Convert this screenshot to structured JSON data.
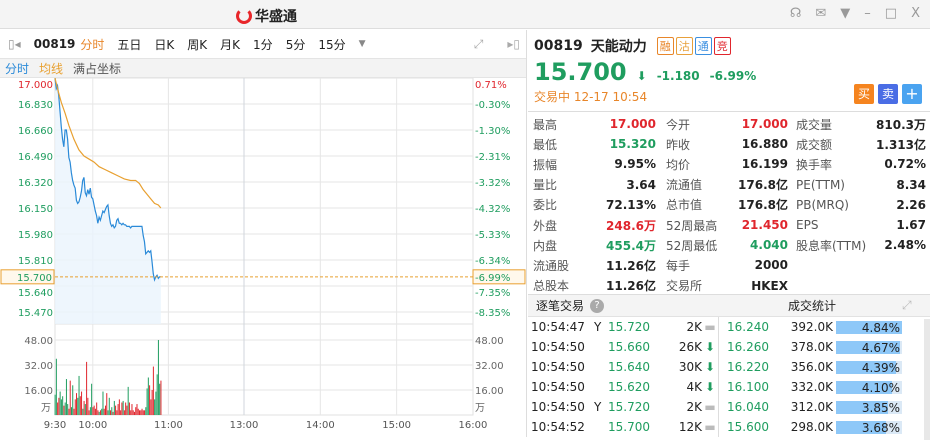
{
  "app": {
    "title": "华盛通",
    "window_icons": [
      "headset-icon",
      "mail-icon",
      "shirt-icon",
      "minimize-icon",
      "maximize-icon",
      "close-icon"
    ]
  },
  "toolbar": {
    "code": "00819",
    "tabs": [
      "分时",
      "五日",
      "日K",
      "周K",
      "月K",
      "1分",
      "5分",
      "15分"
    ],
    "active_tab": "分时"
  },
  "subbar": {
    "items": [
      "分时",
      "均线",
      "满占坐标"
    ]
  },
  "chart_data": {
    "type": "line",
    "price_ticks": [
      "17.000",
      "16.830",
      "16.660",
      "16.490",
      "16.320",
      "16.150",
      "15.980",
      "15.810",
      "15.640",
      "15.470"
    ],
    "pct_ticks": [
      "0.71%",
      "-0.30%",
      "-1.30%",
      "-2.31%",
      "-3.32%",
      "-4.32%",
      "-5.33%",
      "-6.34%",
      "-7.35%",
      "-8.35%"
    ],
    "current_price_label": "15.700",
    "current_pct_label": "-6.99%",
    "volume_ticks": [
      "48.00",
      "32.00",
      "16.00"
    ],
    "volume_unit": "万",
    "time_labels": [
      "9:30",
      "10:00",
      "11:00",
      "13:00",
      "14:00",
      "15:00",
      "16:00"
    ],
    "ylim": [
      15.47,
      17.17
    ],
    "volume_ylim": [
      0,
      56
    ],
    "price_series": [
      [
        0,
        17.0
      ],
      [
        1,
        16.93
      ],
      [
        2,
        16.95
      ],
      [
        3,
        16.88
      ],
      [
        4,
        16.78
      ],
      [
        5,
        16.68
      ],
      [
        6,
        16.6
      ],
      [
        7,
        16.55
      ],
      [
        8,
        16.66
      ],
      [
        9,
        16.66
      ],
      [
        10,
        16.6
      ],
      [
        11,
        16.48
      ],
      [
        12,
        16.45
      ],
      [
        13,
        16.38
      ],
      [
        14,
        16.33
      ],
      [
        15,
        16.3
      ],
      [
        16,
        16.28
      ],
      [
        17,
        16.2
      ],
      [
        18,
        16.18
      ],
      [
        19,
        16.19
      ],
      [
        20,
        16.22
      ],
      [
        21,
        16.26
      ],
      [
        22,
        16.33
      ],
      [
        23,
        16.35
      ],
      [
        24,
        16.25
      ],
      [
        25,
        16.23
      ],
      [
        26,
        16.27
      ],
      [
        27,
        16.24
      ],
      [
        28,
        16.28
      ],
      [
        29,
        16.22
      ],
      [
        30,
        16.21
      ],
      [
        31,
        16.17
      ],
      [
        32,
        16.13
      ],
      [
        33,
        16.1
      ],
      [
        34,
        16.05
      ],
      [
        35,
        16.09
      ],
      [
        36,
        16.07
      ],
      [
        37,
        16.1
      ],
      [
        38,
        16.13
      ],
      [
        39,
        16.12
      ],
      [
        40,
        16.14
      ],
      [
        41,
        16.16
      ],
      [
        42,
        16.17
      ],
      [
        43,
        16.1
      ],
      [
        44,
        16.05
      ],
      [
        45,
        16.03
      ],
      [
        46,
        16.04
      ],
      [
        47,
        16.02
      ],
      [
        48,
        16.03
      ],
      [
        49,
        16.07
      ],
      [
        50,
        16.08
      ],
      [
        51,
        16.05
      ],
      [
        52,
        16.05
      ],
      [
        53,
        16.04
      ],
      [
        54,
        16.05
      ],
      [
        55,
        16.04
      ],
      [
        56,
        16.04
      ],
      [
        57,
        16.03
      ],
      [
        58,
        16.03
      ],
      [
        59,
        16.03
      ],
      [
        60,
        16.02
      ],
      [
        61,
        16.03
      ],
      [
        62,
        16.03
      ],
      [
        63,
        16.03
      ],
      [
        64,
        16.03
      ],
      [
        65,
        16.03
      ],
      [
        66,
        16.03
      ],
      [
        67,
        16.03
      ],
      [
        68,
        16.03
      ],
      [
        69,
        16.03
      ],
      [
        70,
        15.97
      ],
      [
        71,
        15.93
      ],
      [
        72,
        15.85
      ],
      [
        73,
        15.86
      ],
      [
        74,
        15.87
      ],
      [
        75,
        15.86
      ],
      [
        76,
        15.87
      ],
      [
        77,
        15.8
      ],
      [
        78,
        15.72
      ],
      [
        79,
        15.68
      ],
      [
        80,
        15.7
      ],
      [
        81,
        15.71
      ],
      [
        82,
        15.69
      ],
      [
        83,
        15.7
      ],
      [
        84,
        15.7
      ]
    ],
    "avg_series": [
      [
        0,
        17.0
      ],
      [
        2,
        16.93
      ],
      [
        5,
        16.84
      ],
      [
        8,
        16.77
      ],
      [
        11,
        16.69
      ],
      [
        15,
        16.6
      ],
      [
        19,
        16.53
      ],
      [
        23,
        16.49
      ],
      [
        27,
        16.47
      ],
      [
        31,
        16.45
      ],
      [
        35,
        16.42
      ],
      [
        40,
        16.4
      ],
      [
        45,
        16.38
      ],
      [
        50,
        16.36
      ],
      [
        55,
        16.34
      ],
      [
        60,
        16.33
      ],
      [
        64,
        16.33
      ],
      [
        67,
        16.31
      ],
      [
        70,
        16.27
      ],
      [
        73,
        16.24
      ],
      [
        76,
        16.21
      ],
      [
        79,
        16.18
      ],
      [
        82,
        16.17
      ],
      [
        84,
        16.15
      ]
    ],
    "volume_series": [
      [
        0,
        13,
        "g"
      ],
      [
        1,
        36,
        "g"
      ],
      [
        2,
        8,
        "r"
      ],
      [
        3,
        11,
        "r"
      ],
      [
        4,
        15,
        "g"
      ],
      [
        5,
        10,
        "g"
      ],
      [
        6,
        12,
        "g"
      ],
      [
        7,
        6,
        "r"
      ],
      [
        8,
        8,
        "g"
      ],
      [
        9,
        23,
        "g"
      ],
      [
        10,
        7,
        "g"
      ],
      [
        11,
        4,
        "r"
      ],
      [
        12,
        22,
        "r"
      ],
      [
        13,
        5,
        "g"
      ],
      [
        14,
        19,
        "g"
      ],
      [
        15,
        4,
        "r"
      ],
      [
        16,
        10,
        "r"
      ],
      [
        17,
        14,
        "r"
      ],
      [
        18,
        11,
        "g"
      ],
      [
        19,
        25,
        "g"
      ],
      [
        20,
        12,
        "r"
      ],
      [
        21,
        15,
        "r"
      ],
      [
        22,
        4,
        "g"
      ],
      [
        23,
        9,
        "r"
      ],
      [
        24,
        7,
        "g"
      ],
      [
        25,
        34,
        "r"
      ],
      [
        26,
        11,
        "r"
      ],
      [
        27,
        3,
        "r"
      ],
      [
        28,
        5,
        "g"
      ],
      [
        29,
        20,
        "g"
      ],
      [
        30,
        5,
        "r"
      ],
      [
        31,
        6,
        "r"
      ],
      [
        32,
        4,
        "r"
      ],
      [
        33,
        8,
        "r"
      ],
      [
        34,
        3,
        "r"
      ],
      [
        35,
        2,
        "g"
      ],
      [
        36,
        3,
        "r"
      ],
      [
        37,
        4,
        "g"
      ],
      [
        38,
        15,
        "g"
      ],
      [
        39,
        4,
        "r"
      ],
      [
        40,
        6,
        "r"
      ],
      [
        41,
        14,
        "r"
      ],
      [
        42,
        3,
        "g"
      ],
      [
        43,
        11,
        "g"
      ],
      [
        44,
        3,
        "r"
      ],
      [
        45,
        5,
        "g"
      ],
      [
        46,
        2,
        "r"
      ],
      [
        47,
        9,
        "g"
      ],
      [
        48,
        6,
        "r"
      ],
      [
        49,
        3,
        "r"
      ],
      [
        50,
        7,
        "r"
      ],
      [
        51,
        10,
        "r"
      ],
      [
        52,
        3,
        "r"
      ],
      [
        53,
        8,
        "r"
      ],
      [
        54,
        9,
        "g"
      ],
      [
        55,
        3,
        "r"
      ],
      [
        56,
        8,
        "r"
      ],
      [
        57,
        6,
        "r"
      ],
      [
        58,
        18,
        "g"
      ],
      [
        59,
        8,
        "r"
      ],
      [
        60,
        3,
        "r"
      ],
      [
        61,
        7,
        "r"
      ],
      [
        62,
        3,
        "r"
      ],
      [
        63,
        2,
        "r"
      ],
      [
        64,
        5,
        "r"
      ],
      [
        65,
        7,
        "r"
      ],
      [
        66,
        4,
        "r"
      ],
      [
        67,
        3,
        "r"
      ],
      [
        68,
        3,
        "r"
      ],
      [
        69,
        4,
        "r"
      ],
      [
        70,
        3,
        "r"
      ],
      [
        71,
        3,
        "r"
      ],
      [
        72,
        5,
        "g"
      ],
      [
        73,
        17,
        "g"
      ],
      [
        74,
        24,
        "g"
      ],
      [
        75,
        19,
        "r"
      ],
      [
        76,
        10,
        "r"
      ],
      [
        77,
        16,
        "r"
      ],
      [
        78,
        31,
        "r"
      ],
      [
        79,
        10,
        "g"
      ],
      [
        80,
        15,
        "g"
      ],
      [
        81,
        26,
        "g"
      ],
      [
        82,
        48,
        "g"
      ],
      [
        83,
        20,
        "g"
      ],
      [
        84,
        22,
        "r"
      ]
    ]
  },
  "quote": {
    "code": "00819",
    "name": "天能动力",
    "tags": [
      {
        "t": "融",
        "c": "#e8862a"
      },
      {
        "t": "沽",
        "c": "#e8a03a"
      },
      {
        "t": "通",
        "c": "#3a8fe0"
      },
      {
        "t": "竞",
        "c": "#e0262d"
      }
    ],
    "price": "15.700",
    "change": "-1.180",
    "change_pct": "-6.99%",
    "status": "交易中 12-17 10:54",
    "buy": "买",
    "sell": "卖",
    "add": "+"
  },
  "stats": [
    [
      [
        "最高",
        "17.000",
        "red"
      ],
      [
        "今开",
        "17.000",
        "red"
      ],
      [
        "成交量",
        "810.3万",
        ""
      ]
    ],
    [
      [
        "最低",
        "15.320",
        "green"
      ],
      [
        "昨收",
        "16.880",
        ""
      ],
      [
        "成交额",
        "1.313亿",
        ""
      ]
    ],
    [
      [
        "振幅",
        "9.95%",
        ""
      ],
      [
        "均价",
        "16.199",
        ""
      ],
      [
        "换手率",
        "0.72%",
        ""
      ]
    ],
    [
      [
        "量比",
        "3.64",
        ""
      ],
      [
        "流通值",
        "176.8亿",
        ""
      ],
      [
        "PE(TTM)",
        "8.34",
        ""
      ]
    ],
    [
      [
        "委比",
        "72.13%",
        ""
      ],
      [
        "总市值",
        "176.8亿",
        ""
      ],
      [
        "PB(MRQ)",
        "2.26",
        ""
      ]
    ],
    [
      [
        "外盘",
        "248.6万",
        "red"
      ],
      [
        "52周最高",
        "21.450",
        "red"
      ],
      [
        "EPS",
        "1.67",
        ""
      ]
    ],
    [
      [
        "内盘",
        "455.4万",
        "green"
      ],
      [
        "52周最低",
        "4.040",
        "green"
      ],
      [
        "股息率(TTM)",
        "2.48%",
        ""
      ]
    ],
    [
      [
        "流通股",
        "11.26亿",
        ""
      ],
      [
        "每手",
        "2000",
        ""
      ],
      [
        "",
        "",
        " "
      ]
    ],
    [
      [
        "总股本",
        "11.26亿",
        ""
      ],
      [
        "交易所",
        "HKEX",
        ""
      ],
      [
        "",
        "",
        " "
      ]
    ]
  ],
  "trades": {
    "title": "逐笔交易",
    "rows": [
      {
        "time": "10:54:47",
        "flag": "Y",
        "price": "15.720",
        "vol": "2K",
        "dir": "flat"
      },
      {
        "time": "10:54:50",
        "flag": "",
        "price": "15.660",
        "vol": "26K",
        "dir": "down"
      },
      {
        "time": "10:54:50",
        "flag": "",
        "price": "15.640",
        "vol": "30K",
        "dir": "down"
      },
      {
        "time": "10:54:50",
        "flag": "",
        "price": "15.620",
        "vol": "4K",
        "dir": "down"
      },
      {
        "time": "10:54:50",
        "flag": "Y",
        "price": "15.720",
        "vol": "2K",
        "dir": "flat"
      },
      {
        "time": "10:54:52",
        "flag": "",
        "price": "15.700",
        "vol": "12K",
        "dir": "flat"
      }
    ]
  },
  "volume_stats": {
    "title": "成交统计",
    "rows": [
      {
        "price": "16.240",
        "vol": "392.0K",
        "pct": "4.84%",
        "ratio": 1.0
      },
      {
        "price": "16.260",
        "vol": "378.0K",
        "pct": "4.67%",
        "ratio": 0.965
      },
      {
        "price": "16.220",
        "vol": "356.0K",
        "pct": "4.39%",
        "ratio": 0.907
      },
      {
        "price": "16.100",
        "vol": "332.0K",
        "pct": "4.10%",
        "ratio": 0.847
      },
      {
        "price": "16.040",
        "vol": "312.0K",
        "pct": "3.85%",
        "ratio": 0.795
      },
      {
        "price": "15.600",
        "vol": "298.0K",
        "pct": "3.68%",
        "ratio": 0.76
      }
    ]
  },
  "colors": {
    "up": "#e0262d",
    "down": "#1f9d5f",
    "price_line": "#2a8ad8",
    "avg_line": "#e8a030",
    "accent": "#e8862a"
  }
}
